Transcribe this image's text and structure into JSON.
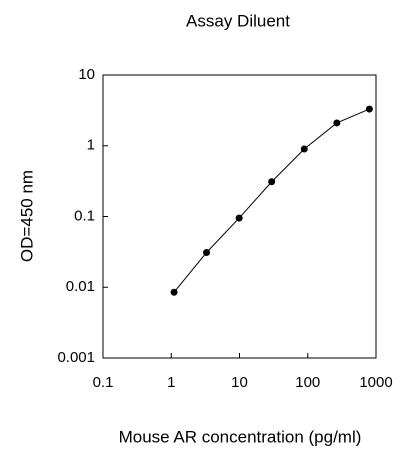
{
  "chart_data": {
    "type": "line",
    "title": "Assay Diluent",
    "x_label": "Mouse AR concentration (pg/ml)",
    "y_label": "OD=450 nm",
    "x": [
      1.1,
      3.29,
      9.88,
      29.6,
      88.9,
      266.7,
      800
    ],
    "series": [
      {
        "color": "#000000",
        "values": [
          0.0085,
          0.031,
          0.095,
          0.31,
          0.9,
          2.1,
          3.3
        ]
      }
    ],
    "xlim": [
      0.1,
      1000
    ],
    "xticks": [
      0.1,
      1,
      10,
      100,
      1000
    ],
    "ylim": [
      0.001,
      10
    ],
    "yticks": [
      0.001,
      0.01,
      0.1,
      1,
      10
    ],
    "xscale": "log",
    "yscale": "log",
    "grid": false
  }
}
